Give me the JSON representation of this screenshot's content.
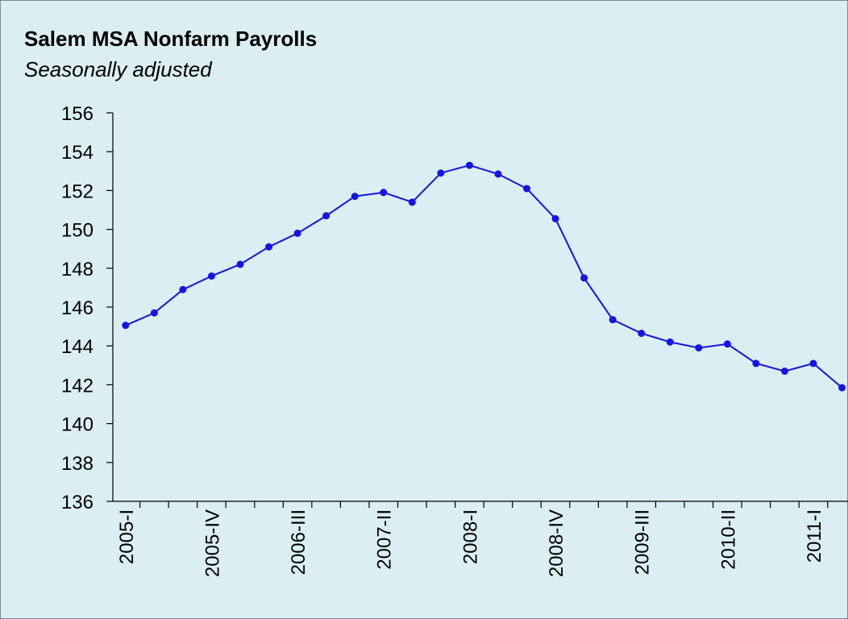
{
  "chart_data": {
    "type": "line",
    "title": "Salem MSA Nonfarm Payrolls",
    "subtitle": "Seasonally adjusted",
    "categories": [
      "2005-I",
      null,
      null,
      "2005-IV",
      null,
      null,
      "2006-III",
      null,
      null,
      "2007-II",
      null,
      null,
      "2008-I",
      null,
      null,
      "2008-IV",
      null,
      null,
      "2009-III",
      null,
      null,
      "2010-II",
      null,
      null,
      "2011-I",
      null
    ],
    "series": [
      {
        "color": "#1414e6",
        "values": [
          145.06,
          145.7,
          146.9,
          147.6,
          148.2,
          149.1,
          149.8,
          150.7,
          151.7,
          151.9,
          151.4,
          152.9,
          153.3,
          152.85,
          152.1,
          150.55,
          147.5,
          145.35,
          144.65,
          144.2,
          143.9,
          144.1,
          143.1,
          142.7,
          143.1,
          141.85
        ]
      }
    ],
    "ylim": [
      136,
      156
    ],
    "yticks": [
      136,
      138,
      140,
      142,
      144,
      146,
      148,
      150,
      152,
      154,
      156
    ],
    "grid": false
  }
}
